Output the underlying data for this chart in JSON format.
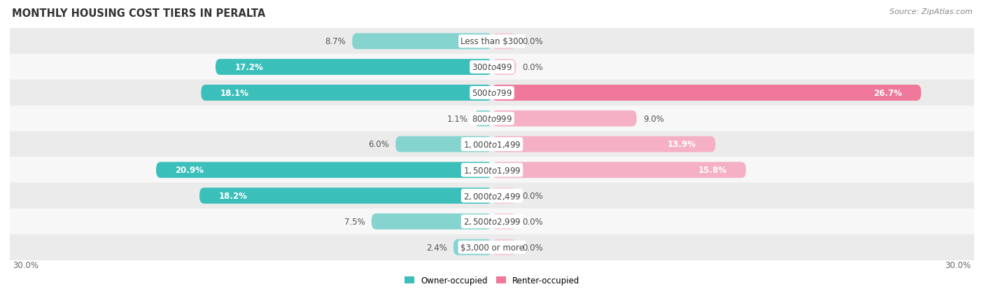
{
  "title": "MONTHLY HOUSING COST TIERS IN PERALTA",
  "source": "Source: ZipAtlas.com",
  "categories": [
    "Less than $300",
    "$300 to $499",
    "$500 to $799",
    "$800 to $999",
    "$1,000 to $1,499",
    "$1,500 to $1,999",
    "$2,000 to $2,499",
    "$2,500 to $2,999",
    "$3,000 or more"
  ],
  "owner_values": [
    8.7,
    17.2,
    18.1,
    1.1,
    6.0,
    20.9,
    18.2,
    7.5,
    2.4
  ],
  "renter_values": [
    0.0,
    0.0,
    26.7,
    9.0,
    13.9,
    15.8,
    0.0,
    0.0,
    0.0
  ],
  "owner_color_dark": "#3bbfba",
  "owner_color_light": "#85d4d0",
  "renter_color_dark": "#f0789a",
  "renter_color_light": "#f5b0c5",
  "renter_zero_color": "#f5c8d8",
  "row_bg_even": "#ebebeb",
  "row_bg_odd": "#f7f7f7",
  "axis_limit": 30.0,
  "label_fontsize": 8.5,
  "title_fontsize": 10.5,
  "source_fontsize": 8,
  "legend_fontsize": 8.5,
  "category_fontsize": 8.5,
  "axis_label_fontsize": 8.5,
  "bar_height": 0.62,
  "zero_stub": 1.5
}
